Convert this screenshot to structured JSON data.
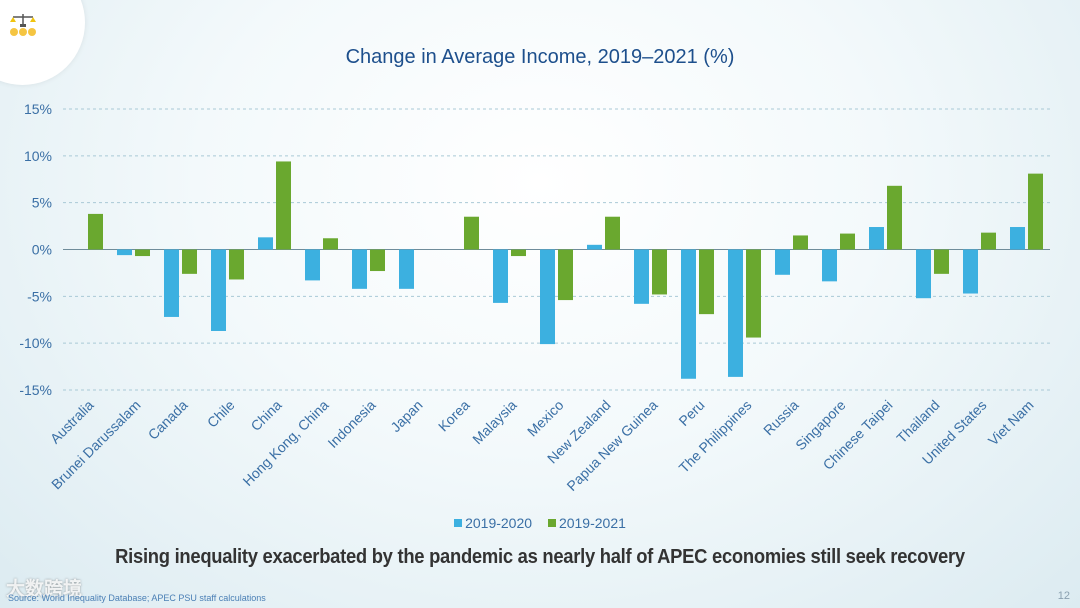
{
  "chart_data": {
    "type": "bar",
    "title": "Change in Average Income, 2019–2021 (%)",
    "xlabel": "",
    "ylabel": "",
    "ylim": [
      -15,
      15
    ],
    "y_ticks": [
      15,
      10,
      5,
      0,
      -5,
      -10,
      -15
    ],
    "y_tick_labels": [
      "15%",
      "10%",
      "5%",
      "0%",
      "-5%",
      "-10%",
      "-15%"
    ],
    "grid": true,
    "legend_position": "bottom",
    "categories": [
      "Australia",
      "Brunei Darussalam",
      "Canada",
      "Chile",
      "China",
      "Hong Kong, China",
      "Indonesia",
      "Japan",
      "Korea",
      "Malaysia",
      "Mexico",
      "New Zealand",
      "Papua New Guinea",
      "Peru",
      "The Philippines",
      "Russia",
      "Singapore",
      "Chinese Taipei",
      "Thailand",
      "United States",
      "Viet Nam"
    ],
    "series": [
      {
        "name": "2019-2020",
        "color": "#3cb0e0",
        "values": [
          0,
          -0.6,
          -7.2,
          -8.7,
          1.3,
          -3.3,
          -4.2,
          -4.2,
          0,
          -5.7,
          -10.1,
          0.5,
          -5.8,
          -13.8,
          -13.6,
          -2.7,
          -3.4,
          2.4,
          -5.2,
          -4.7,
          2.4
        ]
      },
      {
        "name": "2019-2021",
        "color": "#6aa82f",
        "values": [
          3.8,
          -0.7,
          -2.6,
          -3.2,
          9.4,
          1.2,
          -2.3,
          0,
          3.5,
          -0.7,
          -5.4,
          3.5,
          -4.8,
          -6.9,
          -9.4,
          1.5,
          1.7,
          6.8,
          -2.6,
          1.8,
          8.1
        ]
      }
    ]
  },
  "headline": "Rising inequality exacerbated by the pandemic as nearly half of APEC economies still seek recovery",
  "source": "Source: World Inequality Database; APEC PSU staff calculations",
  "page_number": "12",
  "watermark": "大数跨境",
  "logo_icon": "scales-and-coins-icon",
  "colors": {
    "title": "#1d4f8c",
    "axis_text": "#3a6fa5",
    "grid": "#a9c9d6"
  }
}
